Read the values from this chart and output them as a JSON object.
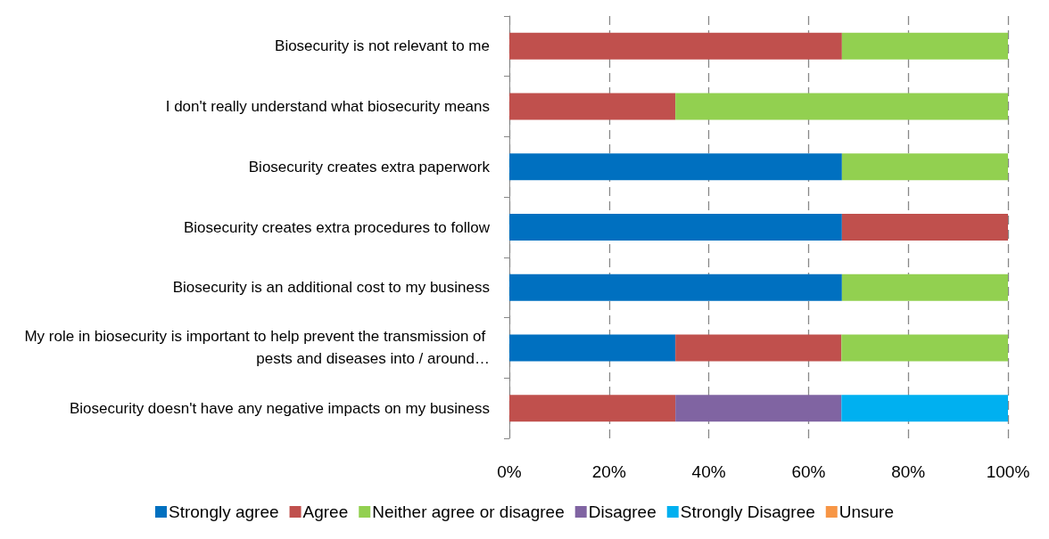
{
  "chart_data": {
    "type": "bar",
    "orientation": "horizontal",
    "stacked": true,
    "categories": [
      "Biosecurity is not relevant to me",
      "I don't really understand what biosecurity means",
      "Biosecurity creates extra paperwork",
      "Biosecurity creates extra procedures to follow",
      "Biosecurity is an additional cost to my business",
      "My role in biosecurity is important to help prevent the transmission of pests and diseases into / around…",
      "Biosecurity doesn't have any negative impacts on my business"
    ],
    "series": [
      {
        "name": "Strongly agree",
        "color": "#0070c0",
        "values": [
          0,
          0,
          66.7,
          66.7,
          66.7,
          33.3,
          0
        ]
      },
      {
        "name": "Agree",
        "color": "#c0504d",
        "values": [
          66.7,
          33.3,
          0,
          33.3,
          0,
          33.3,
          33.3
        ]
      },
      {
        "name": "Neither agree or disagree",
        "color": "#92d050",
        "values": [
          33.3,
          66.7,
          33.3,
          0,
          33.3,
          33.4,
          0
        ]
      },
      {
        "name": "Disagree",
        "color": "#8064a2",
        "values": [
          0,
          0,
          0,
          0,
          0,
          0,
          33.3
        ]
      },
      {
        "name": "Strongly Disagree",
        "color": "#00b0f0",
        "values": [
          0,
          0,
          0,
          0,
          0,
          0,
          33.4
        ]
      },
      {
        "name": "Unsure",
        "color": "#f79646",
        "values": [
          0,
          0,
          0,
          0,
          0,
          0,
          0
        ]
      }
    ],
    "xlim": [
      0,
      100
    ],
    "xticks": [
      {
        "value": 0,
        "label": "0%"
      },
      {
        "value": 20,
        "label": "20%"
      },
      {
        "value": 40,
        "label": "40%"
      },
      {
        "value": 60,
        "label": "60%"
      },
      {
        "value": 80,
        "label": "80%"
      },
      {
        "value": 100,
        "label": "100%"
      }
    ],
    "grid": "x",
    "legend": "bottom"
  }
}
